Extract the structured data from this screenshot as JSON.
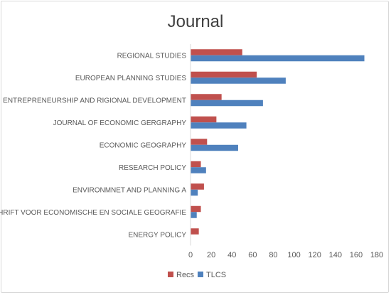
{
  "chart_data": {
    "type": "bar",
    "orientation": "horizontal",
    "title": "Journal",
    "categories": [
      "REGIONAL STUDIES",
      "EUROPEAN PLANNING STUDIES",
      "ENTREPRENEURSHIP AND RIGIONAL DEVELOPMENT",
      "JOURNAL OF ECONOMIC GERGRAPHY",
      "ECONOMIC GEOGRAPHY",
      "RESEARCH POLICY",
      "ENVIRONMNET AND PLANNING A",
      "TIJDSCHRIFT VOOR ECONOMISCHE EN SOCIALE GEOGRAFIE",
      "ENERGY POLICY"
    ],
    "series": [
      {
        "name": "Recs",
        "color": "#c0504d",
        "values": [
          50,
          64,
          30,
          25,
          16,
          10,
          13,
          10,
          8
        ]
      },
      {
        "name": "TLCS",
        "color": "#4f81bd",
        "values": [
          168,
          92,
          70,
          54,
          46,
          15,
          7,
          6,
          0
        ]
      }
    ],
    "xlim": [
      0,
      180
    ],
    "xticks": [
      0,
      20,
      40,
      60,
      80,
      100,
      120,
      140,
      160,
      180
    ],
    "grid": false,
    "legend_position": "bottom"
  }
}
